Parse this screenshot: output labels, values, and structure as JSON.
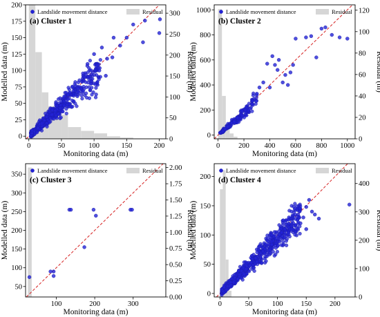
{
  "figure": {
    "legend_scatter": "Landslide movement distance",
    "legend_residual": "Residual",
    "xlabel": "Monitoring data (m)",
    "ylabel": "Modelled data (m)",
    "ylabel_right": "Residual (m)",
    "colors": {
      "point": "#2323d6",
      "point_edge": "#1a1aa8",
      "bar": "#d6d6d6",
      "ref_line": "#d62020"
    }
  },
  "chart_data": [
    {
      "type": "scatter",
      "title": "(a) Cluster 1",
      "xlim": [
        -5,
        210
      ],
      "ylim": [
        -4,
        200
      ],
      "y2lim": [
        0,
        320
      ],
      "xticks": [
        0,
        50,
        100,
        150,
        200
      ],
      "yticks": [
        0,
        25,
        50,
        75,
        100,
        125,
        150,
        175,
        200
      ],
      "y2ticks": [
        0,
        50,
        100,
        150,
        200,
        250,
        300
      ],
      "reference_line": "y = x",
      "legend": "top",
      "residual_hist": [
        {
          "x0": 0,
          "x1": 10,
          "count": 320
        },
        {
          "x0": 10,
          "x1": 20,
          "count": 207
        },
        {
          "x0": 20,
          "x1": 30,
          "count": 111
        },
        {
          "x0": 30,
          "x1": 40,
          "count": 78
        },
        {
          "x0": 40,
          "x1": 50,
          "count": 63
        },
        {
          "x0": 50,
          "x1": 60,
          "count": 58
        },
        {
          "x0": 60,
          "x1": 80,
          "count": 28
        },
        {
          "x0": 80,
          "x1": 100,
          "count": 19
        },
        {
          "x0": 100,
          "x1": 120,
          "count": 13
        },
        {
          "x0": 120,
          "x1": 140,
          "count": 6
        },
        {
          "x0": 140,
          "x1": 160,
          "count": 3
        }
      ],
      "dense_cloud": {
        "n": 460,
        "xmin": 3,
        "xmax": 110,
        "skew": 1.6,
        "slope": 0.92,
        "spread": 0.18
      },
      "points": [
        [
          175,
          143
        ],
        [
          178,
          176
        ],
        [
          200,
          157
        ],
        [
          201,
          178
        ],
        [
          150,
          150
        ],
        [
          140,
          138
        ],
        [
          128,
          120
        ],
        [
          120,
          118
        ],
        [
          118,
          92
        ],
        [
          112,
          135
        ],
        [
          130,
          150
        ],
        [
          160,
          170
        ],
        [
          108,
          100
        ],
        [
          95,
          80
        ],
        [
          100,
          125
        ],
        [
          90,
          110
        ],
        [
          85,
          90
        ],
        [
          105,
          108
        ]
      ]
    },
    {
      "type": "scatter",
      "title": "(b) Cluster 2",
      "xlim": [
        -30,
        1060
      ],
      "ylim": [
        -30,
        1040
      ],
      "y2lim": [
        0,
        125
      ],
      "xticks": [
        0,
        200,
        400,
        600,
        800,
        1000
      ],
      "yticks": [
        0,
        200,
        400,
        600,
        800,
        1000
      ],
      "y2ticks": [
        0,
        20,
        40,
        60,
        80,
        100,
        120
      ],
      "reference_line": "y = x",
      "legend": "top",
      "residual_hist": [
        {
          "x0": 0,
          "x1": 30,
          "count": 121
        },
        {
          "x0": 30,
          "x1": 60,
          "count": 40
        },
        {
          "x0": 60,
          "x1": 90,
          "count": 12
        },
        {
          "x0": 90,
          "x1": 120,
          "count": 5
        },
        {
          "x0": 120,
          "x1": 150,
          "count": 2
        }
      ],
      "dense_cloud": {
        "n": 160,
        "xmin": 15,
        "xmax": 300,
        "skew": 1.3,
        "slope": 0.9,
        "spread": 0.22
      },
      "points": [
        [
          380,
          570
        ],
        [
          420,
          630
        ],
        [
          440,
          560
        ],
        [
          460,
          520
        ],
        [
          500,
          420
        ],
        [
          520,
          480
        ],
        [
          540,
          400
        ],
        [
          580,
          560
        ],
        [
          600,
          770
        ],
        [
          680,
          780
        ],
        [
          720,
          790
        ],
        [
          760,
          620
        ],
        [
          800,
          850
        ],
        [
          830,
          860
        ],
        [
          880,
          800
        ],
        [
          940,
          780
        ],
        [
          1000,
          770
        ],
        [
          400,
          380
        ],
        [
          350,
          420
        ],
        [
          470,
          600
        ],
        [
          320,
          380
        ],
        [
          300,
          330
        ],
        [
          560,
          500
        ]
      ]
    },
    {
      "type": "scatter",
      "title": "(c) Cluster 3",
      "xlim": [
        20,
        385
      ],
      "ylim": [
        22,
        378
      ],
      "y2lim": [
        0,
        2.06
      ],
      "xticks": [
        100,
        200,
        300
      ],
      "yticks": [
        50,
        100,
        150,
        200,
        250,
        300,
        350
      ],
      "y2ticks": [
        0.0,
        0.25,
        0.5,
        0.75,
        1.0,
        1.25,
        1.5,
        1.75,
        2.0
      ],
      "y2format": 2,
      "reference_line": "y = x",
      "legend": "top",
      "residual_hist": [
        {
          "x0": 26,
          "x1": 36,
          "count": 2.0
        }
      ],
      "dense_cloud": {
        "n": 0
      },
      "points": [
        [
          30,
          75
        ],
        [
          85,
          90
        ],
        [
          93,
          90
        ],
        [
          93,
          78
        ],
        [
          134,
          255
        ],
        [
          138,
          255
        ],
        [
          173,
          155
        ],
        [
          197,
          255
        ],
        [
          203,
          239
        ],
        [
          293,
          255
        ],
        [
          297,
          255
        ]
      ]
    },
    {
      "type": "scatter",
      "title": "(d) Cluster 4",
      "xlim": [
        -10,
        235
      ],
      "ylim": [
        -6,
        222
      ],
      "y2lim": [
        0,
        470
      ],
      "xticks": [
        0,
        50,
        100,
        150,
        200
      ],
      "yticks": [
        0,
        50,
        100,
        150,
        200
      ],
      "y2ticks": [
        0,
        100,
        200,
        300,
        400
      ],
      "reference_line": "y = x",
      "legend": "top",
      "residual_hist": [
        {
          "x0": 0,
          "x1": 5,
          "count": 380
        },
        {
          "x0": 5,
          "x1": 10,
          "count": 447
        },
        {
          "x0": 10,
          "x1": 15,
          "count": 132
        },
        {
          "x0": 15,
          "x1": 20,
          "count": 22
        }
      ],
      "dense_cloud": {
        "n": 620,
        "xmin": 3,
        "xmax": 140,
        "skew": 1.4,
        "slope": 0.95,
        "spread": 0.15
      },
      "points": [
        [
          150,
          148
        ],
        [
          155,
          160
        ],
        [
          160,
          140
        ],
        [
          165,
          135
        ],
        [
          172,
          128
        ],
        [
          145,
          130
        ],
        [
          140,
          120
        ],
        [
          130,
          145
        ],
        [
          150,
          110
        ],
        [
          225,
          152
        ],
        [
          120,
          130
        ],
        [
          125,
          110
        ],
        [
          110,
          125
        ]
      ]
    }
  ]
}
